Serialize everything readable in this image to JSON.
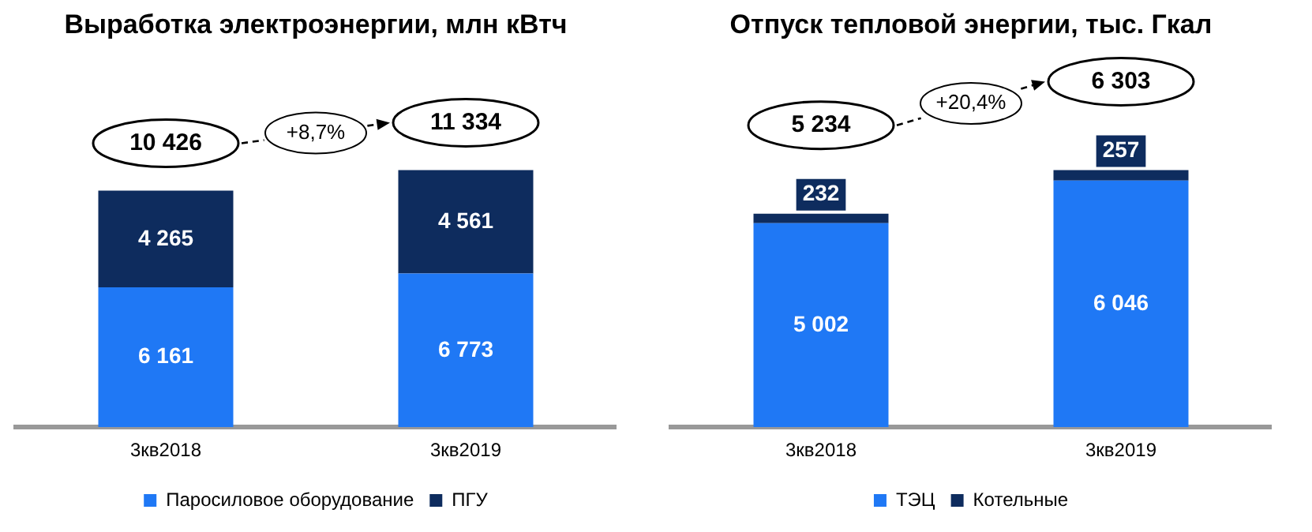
{
  "chart_data": [
    {
      "type": "bar",
      "title": "Выработка электроэнергии, млн кВтч",
      "categories": [
        "3кв2018",
        "3кв2019"
      ],
      "stacked": true,
      "legend": "bottom",
      "tick_labels": "x",
      "series": [
        {
          "name": "Паросиловое оборудование",
          "color": "#1f78f5",
          "values": [
            6161,
            6773
          ],
          "value_labels": [
            "6 161",
            "6 773"
          ]
        },
        {
          "name": "ПГУ",
          "color": "#0e2c5e",
          "values": [
            4265,
            4561
          ],
          "value_labels": [
            "4 265",
            "4 561"
          ]
        }
      ],
      "totals": [
        "10 426",
        "11 334"
      ],
      "annotations": [
        "+8,7%"
      ]
    },
    {
      "type": "bar",
      "title": "Отпуск тепловой энергии, тыс. Гкал",
      "categories": [
        "3кв2018",
        "3кв2019"
      ],
      "stacked": true,
      "legend": "bottom",
      "tick_labels": "x",
      "series": [
        {
          "name": "ТЭЦ",
          "color": "#1f78f5",
          "values": [
            5002,
            6046
          ],
          "value_labels": [
            "5 002",
            "6 046"
          ]
        },
        {
          "name": "Котельные",
          "color": "#0e2c5e",
          "values": [
            232,
            257
          ],
          "value_labels": [
            "232",
            "257"
          ]
        }
      ],
      "totals": [
        "5 234",
        "6 303"
      ],
      "annotations": [
        "+20,4%"
      ]
    }
  ]
}
